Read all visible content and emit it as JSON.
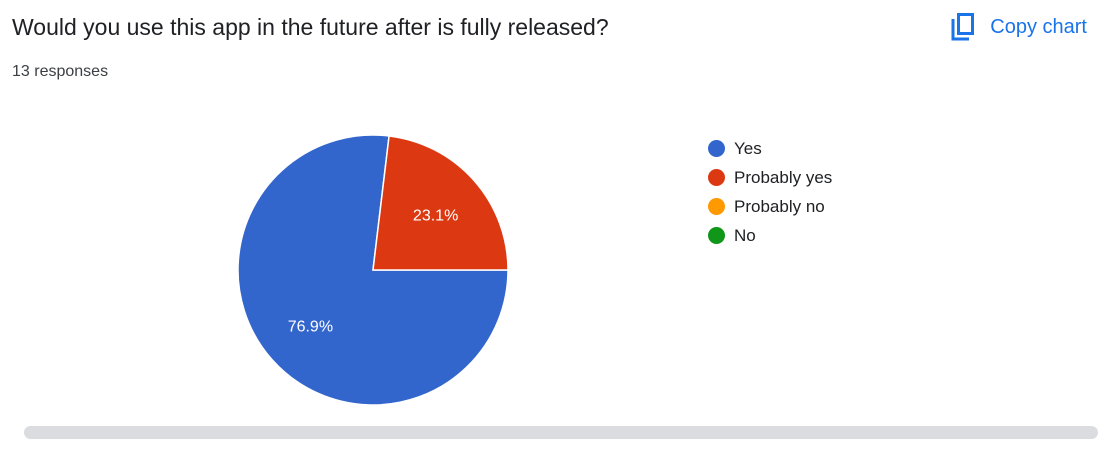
{
  "question": {
    "title": "Would you use this app in the future after is fully released?",
    "responses": "13 responses"
  },
  "toolbar": {
    "copy_chart_label": "Copy chart",
    "copy_icon": "copy-icon",
    "accent": "#1a73e8"
  },
  "chart_data": {
    "type": "pie",
    "categories": [
      "Yes",
      "Probably yes",
      "Probably no",
      "No"
    ],
    "values": [
      76.9,
      23.1,
      0,
      0
    ],
    "colors": [
      "#3366cc",
      "#dc3912",
      "#ff9900",
      "#109618"
    ],
    "data_labels": [
      "76.9%",
      "23.1%",
      "",
      ""
    ],
    "legend_position": "right"
  }
}
